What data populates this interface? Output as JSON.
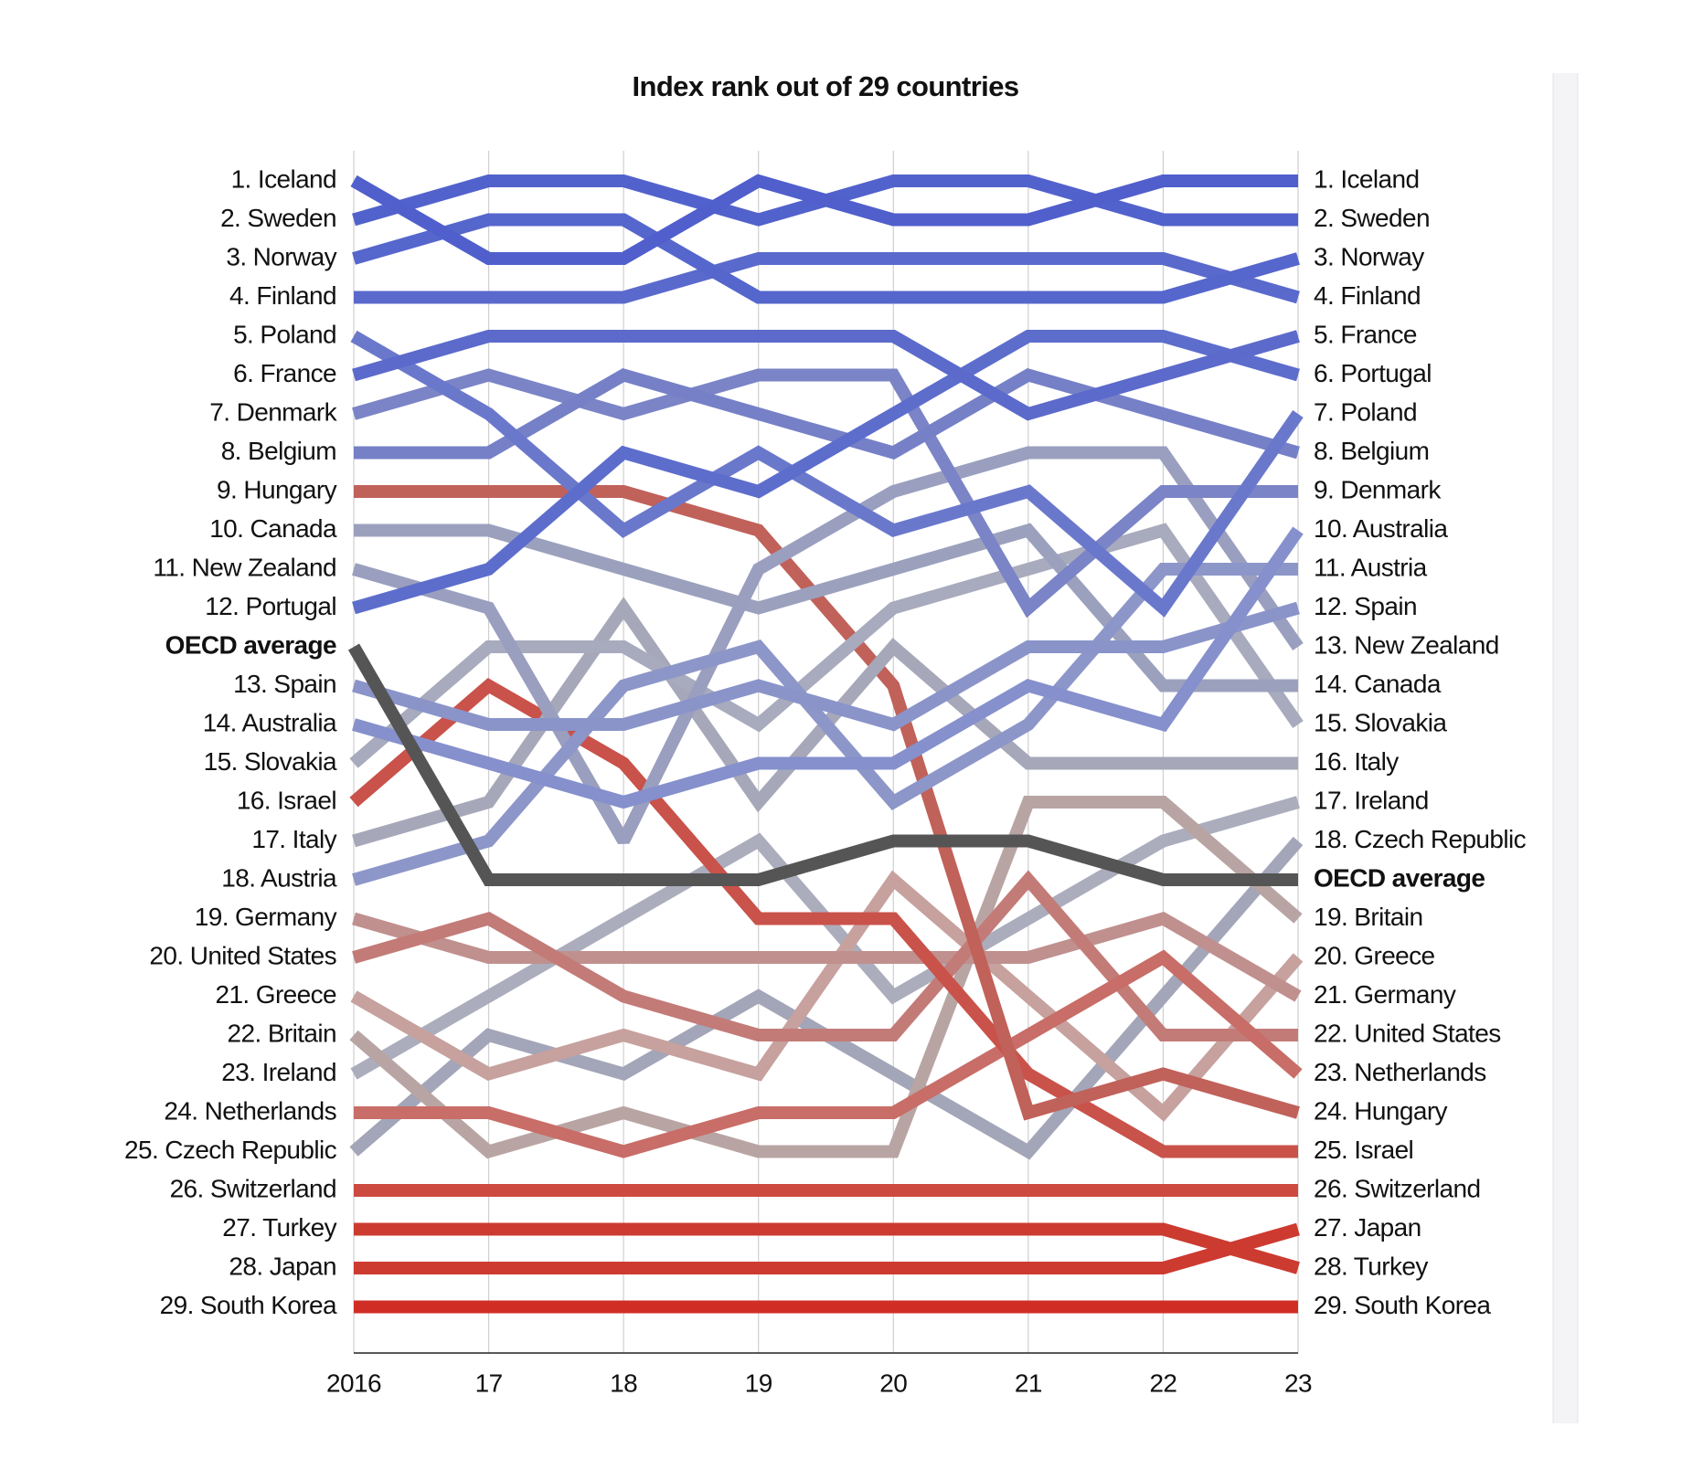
{
  "chart_data": {
    "type": "bump",
    "title": "Index rank out of 29 countries",
    "x": [
      "2016",
      "17",
      "18",
      "19",
      "20",
      "21",
      "22",
      "23"
    ],
    "ylim": [
      1,
      29
    ],
    "yticks": [
      {
        "value": 1,
        "label": "1. Iceland"
      },
      {
        "value": 2,
        "label": "2. Sweden"
      },
      {
        "value": 3,
        "label": "3. Norway"
      },
      {
        "value": 4,
        "label": "4. Finland"
      },
      {
        "value": 5,
        "label": "5. Poland"
      },
      {
        "value": 6,
        "label": "6. France"
      },
      {
        "value": 7,
        "label": "7. Denmark"
      },
      {
        "value": 8,
        "label": "8. Belgium"
      },
      {
        "value": 9,
        "label": "9. Hungary"
      },
      {
        "value": 10,
        "label": "10. Canada"
      },
      {
        "value": 11,
        "label": "11. New Zealand"
      },
      {
        "value": 12,
        "label": "12. Portugal"
      },
      {
        "value": 12.5,
        "label": "OECD average"
      },
      {
        "value": 13,
        "label": "13. Spain"
      },
      {
        "value": 14,
        "label": "14. Australia"
      },
      {
        "value": 15,
        "label": "15. Slovakia"
      },
      {
        "value": 16,
        "label": "16. Israel"
      },
      {
        "value": 17,
        "label": "17. Italy"
      },
      {
        "value": 18,
        "label": "18. Austria"
      },
      {
        "value": 19,
        "label": "19. Germany"
      },
      {
        "value": 20,
        "label": "20. United States"
      },
      {
        "value": 21,
        "label": "21. Greece"
      },
      {
        "value": 22,
        "label": "22. Britain"
      },
      {
        "value": 23,
        "label": "23. Ireland"
      },
      {
        "value": 24,
        "label": "24. Netherlands"
      },
      {
        "value": 25,
        "label": "25. Czech Republic"
      },
      {
        "value": 26,
        "label": "26. Switzerland"
      },
      {
        "value": 27,
        "label": "27. Turkey"
      },
      {
        "value": 28,
        "label": "28. Japan"
      },
      {
        "value": 29,
        "label": "29. South Korea"
      }
    ],
    "y2ticks": [
      {
        "value": 1,
        "label": "1. Iceland"
      },
      {
        "value": 2,
        "label": "2. Sweden"
      },
      {
        "value": 3,
        "label": "3. Norway"
      },
      {
        "value": 4,
        "label": "4. Finland"
      },
      {
        "value": 5,
        "label": "5. France"
      },
      {
        "value": 6,
        "label": "6. Portugal"
      },
      {
        "value": 7,
        "label": "7. Poland"
      },
      {
        "value": 8,
        "label": "8. Belgium"
      },
      {
        "value": 9,
        "label": "9. Denmark"
      },
      {
        "value": 10,
        "label": "10. Australia"
      },
      {
        "value": 11,
        "label": "11. Austria"
      },
      {
        "value": 12,
        "label": "12. Spain"
      },
      {
        "value": 13,
        "label": "13. New Zealand"
      },
      {
        "value": 14,
        "label": "14. Canada"
      },
      {
        "value": 15,
        "label": "15. Slovakia"
      },
      {
        "value": 16,
        "label": "16. Italy"
      },
      {
        "value": 17,
        "label": "17. Ireland"
      },
      {
        "value": 18,
        "label": "18. Czech Republic"
      },
      {
        "value": 18.5,
        "label": "OECD average"
      },
      {
        "value": 19,
        "label": "19. Britain"
      },
      {
        "value": 20,
        "label": "20. Greece"
      },
      {
        "value": 21,
        "label": "21. Germany"
      },
      {
        "value": 22,
        "label": "22. United States"
      },
      {
        "value": 23,
        "label": "23. Netherlands"
      },
      {
        "value": 24,
        "label": "24. Hungary"
      },
      {
        "value": 25,
        "label": "25. Israel"
      },
      {
        "value": 26,
        "label": "26. Switzerland"
      },
      {
        "value": 27,
        "label": "27. Japan"
      },
      {
        "value": 28,
        "label": "28. Turkey"
      },
      {
        "value": 29,
        "label": "29. South Korea"
      }
    ],
    "series": [
      {
        "color": "#a3a5b8",
        "values": [
          25,
          22,
          23,
          21,
          23,
          25,
          21,
          18
        ]
      },
      {
        "color": "#abadbd",
        "values": [
          23,
          21,
          19,
          18,
          21,
          19,
          18,
          17
        ]
      },
      {
        "color": "#b8a5a3",
        "values": [
          22,
          25,
          24,
          25,
          25,
          17,
          17,
          19
        ]
      },
      {
        "color": "#c6a19e",
        "values": [
          21,
          23,
          22,
          23,
          18,
          21,
          24,
          20
        ]
      },
      {
        "color": "#c0908e",
        "values": [
          19,
          20,
          20,
          20,
          20,
          20,
          19,
          21
        ]
      },
      {
        "color": "#c37b78",
        "values": [
          20,
          19,
          21,
          22,
          22,
          18,
          22,
          22
        ]
      },
      {
        "color": "#c86d67",
        "values": [
          24,
          24,
          25,
          24,
          24,
          22,
          20,
          23
        ]
      },
      {
        "color": "#c9524a",
        "values": [
          16,
          14,
          16,
          19,
          19,
          23,
          25,
          25
        ]
      },
      {
        "color": "#c0615a",
        "values": [
          9,
          9,
          9,
          10,
          14,
          24,
          23,
          24
        ]
      },
      {
        "color": "#a6a8b9",
        "values": [
          17,
          17,
          12,
          17,
          13,
          16,
          16,
          16
        ]
      },
      {
        "color": "#a8aabd",
        "values": [
          15,
          13,
          13,
          15,
          12,
          11,
          10,
          15
        ]
      },
      {
        "color": "#9ba1bd",
        "values": [
          10,
          10,
          11,
          12,
          11,
          10,
          14,
          14
        ]
      },
      {
        "color": "#9a9fbf",
        "values": [
          11,
          12,
          18,
          11,
          9,
          8,
          8,
          13
        ]
      },
      {
        "color": "#8d96c8",
        "values": [
          18,
          18,
          14,
          13,
          17,
          15,
          11,
          11
        ]
      },
      {
        "color": "#8a94c9",
        "values": [
          13,
          15,
          15,
          14,
          15,
          13,
          13,
          12
        ]
      },
      {
        "color": "#8590cc",
        "values": [
          14,
          16,
          17,
          16,
          16,
          14,
          15,
          10
        ]
      },
      {
        "color": "#7a84c6",
        "values": [
          7,
          6,
          7,
          6,
          6,
          12,
          9,
          9
        ]
      },
      {
        "color": "#7580c7",
        "values": [
          8,
          8,
          6,
          7,
          8,
          6,
          7,
          8
        ]
      },
      {
        "color": "#6a78cc",
        "values": [
          5,
          7,
          10,
          8,
          10,
          9,
          12,
          7
        ]
      },
      {
        "color": "#5d6dcc",
        "values": [
          12,
          11,
          8,
          9,
          7,
          5,
          5,
          6
        ]
      },
      {
        "color": "#5b6acb",
        "values": [
          6,
          5,
          5,
          5,
          5,
          7,
          6,
          5
        ]
      },
      {
        "color": "#5a69cc",
        "values": [
          4,
          4,
          4,
          3,
          3,
          3,
          3,
          4
        ]
      },
      {
        "color": "#5566cc",
        "values": [
          3,
          2,
          2,
          4,
          4,
          4,
          4,
          3
        ]
      },
      {
        "color": "#5262cc",
        "values": [
          2,
          1,
          1,
          2,
          1,
          1,
          2,
          2
        ]
      },
      {
        "color": "#505fcc",
        "values": [
          1,
          3,
          3,
          1,
          2,
          2,
          1,
          1
        ]
      },
      {
        "color": "#cc4a40",
        "values": [
          26,
          26,
          26,
          26,
          26,
          26,
          26,
          26
        ]
      },
      {
        "color": "#cc3b30",
        "values": [
          27,
          27,
          27,
          27,
          27,
          27,
          27,
          28
        ]
      },
      {
        "color": "#cd3a30",
        "values": [
          28,
          28,
          28,
          28,
          28,
          28,
          28,
          27
        ]
      },
      {
        "color": "#d02e25",
        "values": [
          29,
          29,
          29,
          29,
          29,
          29,
          29,
          29
        ]
      },
      {
        "color": "#555555",
        "reference": true,
        "values": [
          12.5,
          18.5,
          18.5,
          18.5,
          17.5,
          17.5,
          18.5,
          18.5
        ]
      }
    ]
  }
}
